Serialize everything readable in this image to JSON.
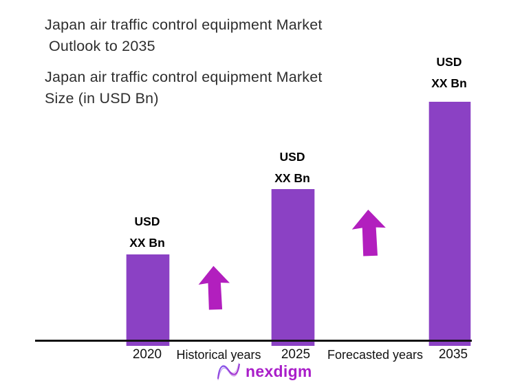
{
  "title": {
    "line1": "Japan air traffic control equipment Market",
    "line2": "Outlook to 2035"
  },
  "subtitle": {
    "line1": "Japan air traffic control equipment Market",
    "line2": "Size (in USD Bn)"
  },
  "chart_data": {
    "type": "bar",
    "title": "Japan air traffic control equipment Market Outlook to 2035",
    "subtitle": "Japan air traffic control equipment Market Size (in USD Bn)",
    "categories": [
      "2020",
      "2025",
      "2035"
    ],
    "values": [
      "XX",
      "XX",
      "XX"
    ],
    "unit": "USD Bn",
    "value_labels": [
      {
        "line1": "USD",
        "line2": "XX Bn"
      },
      {
        "line1": "USD",
        "line2": "XX Bn"
      },
      {
        "line1": "USD",
        "line2": "XX Bn"
      }
    ],
    "relative_heights": [
      0.375,
      0.642,
      1.0
    ],
    "annotations": [
      "Historical years",
      "Forecasted years"
    ],
    "legend": "none",
    "grid": false,
    "ylabel": "",
    "xlabel": ""
  },
  "colors": {
    "bar": "#8b41c4",
    "arrow": "#b21fbe",
    "logo_text": "#a91ec9",
    "title_text": "#2e2e2e",
    "axis_line": "#111111"
  },
  "logo": {
    "text": "nexdigm"
  }
}
